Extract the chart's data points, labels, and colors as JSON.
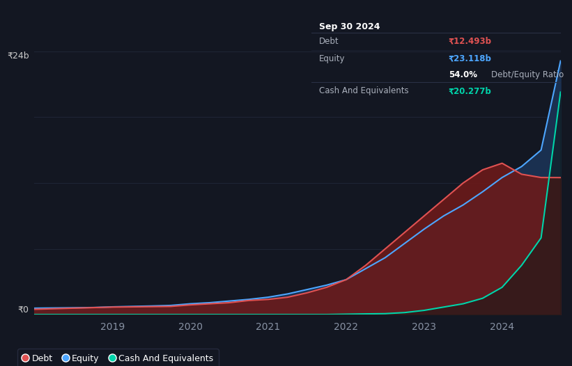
{
  "background_color": "#131722",
  "plot_bg_color": "#131722",
  "grid_color": "#1e2535",
  "title_box": {
    "date": "Sep 30 2024",
    "debt_label": "Debt",
    "debt_value": "₹12.493b",
    "debt_color": "#e05252",
    "equity_label": "Equity",
    "equity_value": "₹23.118b",
    "equity_color": "#4da6ff",
    "ratio_bold": "54.0%",
    "ratio_text": "Debt/Equity Ratio",
    "cash_label": "Cash And Equivalents",
    "cash_value": "₹20.277b",
    "cash_color": "#00d4aa"
  },
  "yaxis": {
    "label_top": "₹24b",
    "label_bottom": "₹0",
    "ymax": 24,
    "ymin": 0
  },
  "legend": [
    {
      "label": "Debt",
      "color": "#e05252"
    },
    {
      "label": "Equity",
      "color": "#4da6ff"
    },
    {
      "label": "Cash And Equivalents",
      "color": "#00d4aa"
    }
  ],
  "series": {
    "x": [
      0,
      1,
      2,
      3,
      4,
      5,
      6,
      7,
      8,
      9,
      10,
      11,
      12,
      13,
      14,
      15,
      16,
      17,
      18,
      19,
      20,
      21,
      22,
      23,
      24,
      25,
      26,
      27
    ],
    "debt": [
      0.5,
      0.55,
      0.6,
      0.65,
      0.7,
      0.72,
      0.74,
      0.76,
      0.9,
      1.0,
      1.1,
      1.3,
      1.4,
      1.6,
      2.0,
      2.5,
      3.2,
      4.5,
      6.0,
      7.5,
      9.0,
      10.5,
      12.0,
      13.2,
      13.8,
      12.8,
      12.5,
      12.493
    ],
    "equity": [
      0.6,
      0.62,
      0.64,
      0.66,
      0.72,
      0.76,
      0.8,
      0.85,
      1.0,
      1.1,
      1.25,
      1.4,
      1.6,
      1.9,
      2.3,
      2.7,
      3.2,
      4.2,
      5.2,
      6.5,
      7.8,
      9.0,
      10.0,
      11.2,
      12.5,
      13.5,
      15.0,
      23.118
    ],
    "cash": [
      0.02,
      0.02,
      0.02,
      0.02,
      0.02,
      0.02,
      0.02,
      0.02,
      0.02,
      0.02,
      0.02,
      0.02,
      0.02,
      0.02,
      0.02,
      0.02,
      0.05,
      0.08,
      0.1,
      0.2,
      0.4,
      0.7,
      1.0,
      1.5,
      2.5,
      4.5,
      7.0,
      20.277
    ]
  },
  "debt_color": "#e05252",
  "debt_fill": "#6b1a1a",
  "equity_color": "#4da6ff",
  "equity_fill": "#1a3050",
  "cash_color": "#00d4aa",
  "cash_fill": "#0a2e28",
  "xtick_labels": [
    "2019",
    "2020",
    "2021",
    "2022",
    "2023",
    "2024"
  ],
  "xtick_x": [
    4,
    8,
    12,
    16,
    20,
    24
  ],
  "num_points": 28,
  "figsize": [
    8.21,
    5.26
  ],
  "dpi": 100
}
